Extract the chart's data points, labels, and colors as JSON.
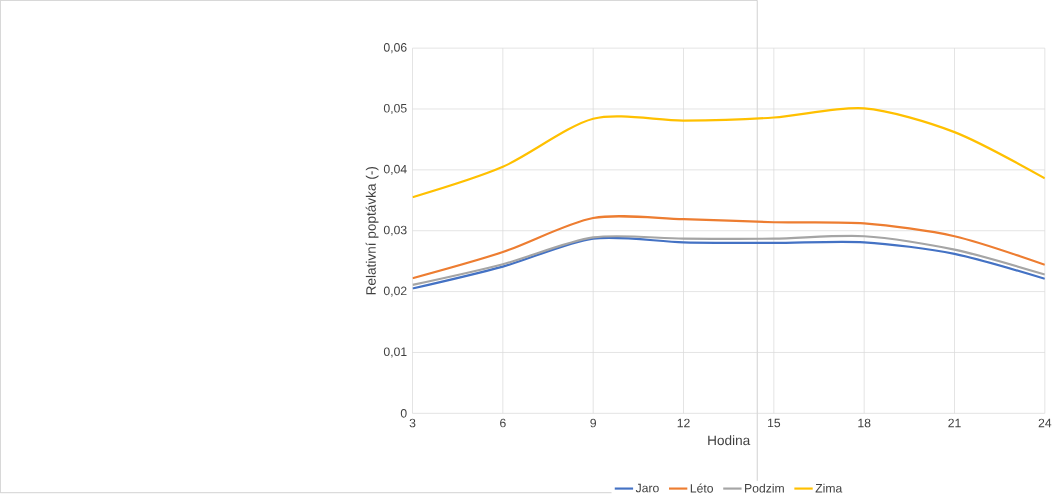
{
  "chart_data": {
    "type": "line",
    "xlabel": "Hodina",
    "ylabel": "Relativní poptávka (-)",
    "x": [
      3,
      6,
      9,
      12,
      15,
      18,
      21,
      24
    ],
    "series": [
      {
        "name": "Jaro",
        "color": "#4472c4",
        "values": [
          0.0205,
          0.0241,
          0.0287,
          0.0281,
          0.028,
          0.0281,
          0.0262,
          0.0221
        ]
      },
      {
        "name": "Léto",
        "color": "#ed7d31",
        "values": [
          0.0222,
          0.0265,
          0.0321,
          0.0319,
          0.0314,
          0.0312,
          0.0291,
          0.0244
        ]
      },
      {
        "name": "Podzim",
        "color": "#a5a5a5",
        "values": [
          0.0211,
          0.0245,
          0.0289,
          0.0287,
          0.0287,
          0.0291,
          0.0269,
          0.0228
        ]
      },
      {
        "name": "Zima",
        "color": "#ffc000",
        "values": [
          0.0355,
          0.0405,
          0.0484,
          0.0481,
          0.0486,
          0.0501,
          0.0462,
          0.0386
        ]
      }
    ],
    "xlim": [
      3,
      24
    ],
    "xticks": [
      3,
      6,
      9,
      12,
      15,
      18,
      21,
      24
    ],
    "ylim": [
      0,
      0.06
    ],
    "yticks": [
      0,
      {
        "value": 0.01,
        "label": "0,01"
      },
      {
        "value": 0.02,
        "label": "0,02"
      },
      {
        "value": 0.03,
        "label": "0,03"
      },
      {
        "value": 0.04,
        "label": "0,04"
      },
      {
        "value": 0.05,
        "label": "0,05"
      },
      {
        "value": 0.06,
        "label": "0,06"
      }
    ],
    "grid": true,
    "legend": "bottom"
  }
}
